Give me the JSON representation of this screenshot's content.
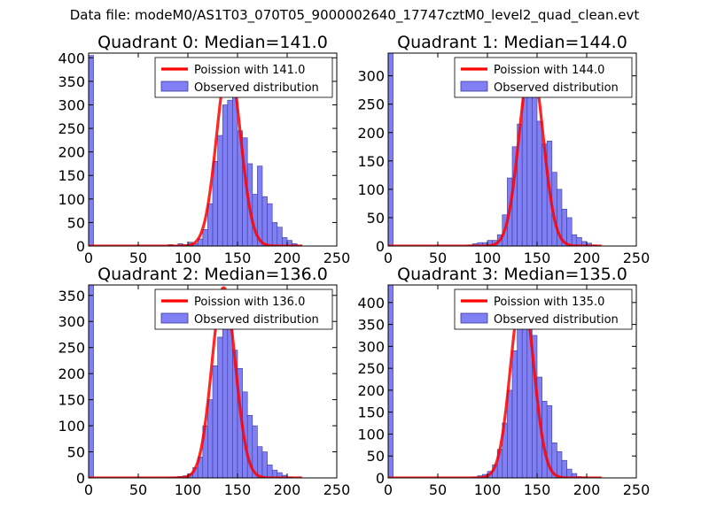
{
  "figure": {
    "suptitle": "Data file: modeM0/AS1T03_070T05_9000002640_17747cztM0_level2_quad_clean.evt"
  },
  "colors": {
    "bar_fill": "#8080f4",
    "bar_edge": "#3a3a9a",
    "curve": "#ff0000",
    "curve_overlap": "#f08080"
  },
  "chart_data": [
    {
      "type": "bar",
      "title": "Quadrant 0: Median=141.0",
      "xlim": [
        0,
        250
      ],
      "ylim": [
        0,
        410
      ],
      "xticks": [
        0,
        50,
        100,
        150,
        200,
        250
      ],
      "yticks": [
        0,
        50,
        100,
        150,
        200,
        250,
        300,
        350,
        400
      ],
      "legend": [
        "Poission with 141.0",
        "Observed distribution"
      ],
      "bin_width": 5,
      "median": 141,
      "peak": 390,
      "sigma": 12,
      "bins": [
        {
          "x": 0,
          "y": 405
        },
        {
          "x": 80,
          "y": 3
        },
        {
          "x": 85,
          "y": 1
        },
        {
          "x": 90,
          "y": 5
        },
        {
          "x": 95,
          "y": 3
        },
        {
          "x": 100,
          "y": 8
        },
        {
          "x": 105,
          "y": 5
        },
        {
          "x": 110,
          "y": 15
        },
        {
          "x": 115,
          "y": 35
        },
        {
          "x": 120,
          "y": 90
        },
        {
          "x": 125,
          "y": 180
        },
        {
          "x": 130,
          "y": 235
        },
        {
          "x": 135,
          "y": 300
        },
        {
          "x": 140,
          "y": 310
        },
        {
          "x": 145,
          "y": 320
        },
        {
          "x": 150,
          "y": 245
        },
        {
          "x": 155,
          "y": 230
        },
        {
          "x": 160,
          "y": 175
        },
        {
          "x": 165,
          "y": 110
        },
        {
          "x": 170,
          "y": 170
        },
        {
          "x": 175,
          "y": 105
        },
        {
          "x": 180,
          "y": 90
        },
        {
          "x": 185,
          "y": 50
        },
        {
          "x": 190,
          "y": 40
        },
        {
          "x": 195,
          "y": 18
        },
        {
          "x": 200,
          "y": 12
        },
        {
          "x": 205,
          "y": 5
        },
        {
          "x": 210,
          "y": 2
        }
      ]
    },
    {
      "type": "bar",
      "title": "Quadrant 1: Median=144.0",
      "xlim": [
        0,
        250
      ],
      "ylim": [
        0,
        340
      ],
      "xticks": [
        0,
        50,
        100,
        150,
        200,
        250
      ],
      "yticks": [
        0,
        50,
        100,
        150,
        200,
        250,
        300
      ],
      "legend": [
        "Poission with 144.0",
        "Observed distribution"
      ],
      "bin_width": 5,
      "median": 144,
      "peak": 325,
      "sigma": 12,
      "bins": [
        {
          "x": 0,
          "y": 340
        },
        {
          "x": 80,
          "y": 2
        },
        {
          "x": 85,
          "y": 4
        },
        {
          "x": 90,
          "y": 6
        },
        {
          "x": 95,
          "y": 6
        },
        {
          "x": 100,
          "y": 10
        },
        {
          "x": 105,
          "y": 10
        },
        {
          "x": 110,
          "y": 20
        },
        {
          "x": 115,
          "y": 55
        },
        {
          "x": 120,
          "y": 120
        },
        {
          "x": 125,
          "y": 175
        },
        {
          "x": 130,
          "y": 215
        },
        {
          "x": 135,
          "y": 300
        },
        {
          "x": 140,
          "y": 315
        },
        {
          "x": 145,
          "y": 270
        },
        {
          "x": 150,
          "y": 220
        },
        {
          "x": 155,
          "y": 180
        },
        {
          "x": 160,
          "y": 185
        },
        {
          "x": 165,
          "y": 130
        },
        {
          "x": 170,
          "y": 100
        },
        {
          "x": 175,
          "y": 65
        },
        {
          "x": 180,
          "y": 50
        },
        {
          "x": 185,
          "y": 20
        },
        {
          "x": 190,
          "y": 15
        },
        {
          "x": 195,
          "y": 8
        },
        {
          "x": 200,
          "y": 5
        },
        {
          "x": 205,
          "y": 2
        }
      ]
    },
    {
      "type": "bar",
      "title": "Quadrant 2: Median=136.0",
      "xlim": [
        0,
        250
      ],
      "ylim": [
        0,
        370
      ],
      "xticks": [
        0,
        50,
        100,
        150,
        200,
        250
      ],
      "yticks": [
        0,
        50,
        100,
        150,
        200,
        250,
        300,
        350
      ],
      "legend": [
        "Poission with 136.0",
        "Observed distribution"
      ],
      "bin_width": 5,
      "median": 136,
      "peak": 365,
      "sigma": 11.7,
      "bins": [
        {
          "x": 0,
          "y": 370
        },
        {
          "x": 80,
          "y": 1
        },
        {
          "x": 85,
          "y": 2
        },
        {
          "x": 90,
          "y": 3
        },
        {
          "x": 95,
          "y": 4
        },
        {
          "x": 100,
          "y": 8
        },
        {
          "x": 105,
          "y": 20
        },
        {
          "x": 110,
          "y": 40
        },
        {
          "x": 115,
          "y": 100
        },
        {
          "x": 120,
          "y": 150
        },
        {
          "x": 125,
          "y": 215
        },
        {
          "x": 130,
          "y": 270
        },
        {
          "x": 135,
          "y": 345
        },
        {
          "x": 140,
          "y": 305
        },
        {
          "x": 145,
          "y": 245
        },
        {
          "x": 150,
          "y": 210
        },
        {
          "x": 155,
          "y": 165
        },
        {
          "x": 160,
          "y": 120
        },
        {
          "x": 165,
          "y": 100
        },
        {
          "x": 170,
          "y": 60
        },
        {
          "x": 175,
          "y": 50
        },
        {
          "x": 180,
          "y": 25
        },
        {
          "x": 185,
          "y": 15
        },
        {
          "x": 190,
          "y": 10
        },
        {
          "x": 195,
          "y": 5
        },
        {
          "x": 200,
          "y": 2
        }
      ]
    },
    {
      "type": "bar",
      "title": "Quadrant 3: Median=135.0",
      "xlim": [
        0,
        250
      ],
      "ylim": [
        0,
        440
      ],
      "xticks": [
        0,
        50,
        100,
        150,
        200,
        250
      ],
      "yticks": [
        0,
        50,
        100,
        150,
        200,
        250,
        300,
        350,
        400
      ],
      "legend": [
        "Poission with 135.0",
        "Observed distribution"
      ],
      "bin_width": 5,
      "median": 135,
      "peak": 425,
      "sigma": 11.6,
      "bins": [
        {
          "x": 0,
          "y": 440
        },
        {
          "x": 85,
          "y": 2
        },
        {
          "x": 90,
          "y": 5
        },
        {
          "x": 95,
          "y": 8
        },
        {
          "x": 100,
          "y": 15
        },
        {
          "x": 105,
          "y": 30
        },
        {
          "x": 110,
          "y": 65
        },
        {
          "x": 115,
          "y": 125
        },
        {
          "x": 120,
          "y": 200
        },
        {
          "x": 125,
          "y": 290
        },
        {
          "x": 130,
          "y": 375
        },
        {
          "x": 135,
          "y": 420
        },
        {
          "x": 140,
          "y": 410
        },
        {
          "x": 145,
          "y": 325
        },
        {
          "x": 150,
          "y": 230
        },
        {
          "x": 155,
          "y": 175
        },
        {
          "x": 160,
          "y": 165
        },
        {
          "x": 165,
          "y": 80
        },
        {
          "x": 170,
          "y": 60
        },
        {
          "x": 175,
          "y": 40
        },
        {
          "x": 180,
          "y": 20
        },
        {
          "x": 185,
          "y": 10
        },
        {
          "x": 190,
          "y": 3
        },
        {
          "x": 195,
          "y": 2
        }
      ]
    }
  ]
}
